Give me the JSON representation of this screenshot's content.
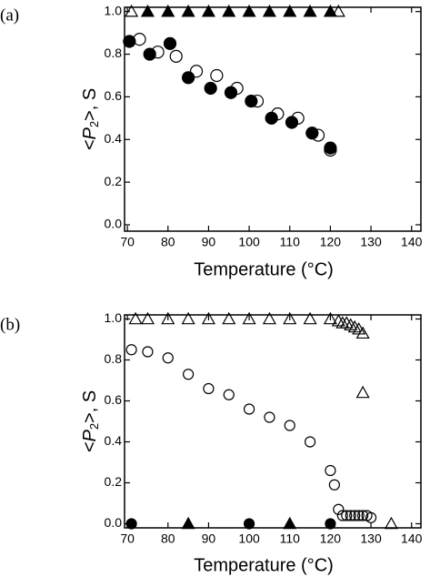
{
  "chart_data": [
    {
      "type": "scatter",
      "panel_label": "(a)",
      "x_label": "Temperature (°C)",
      "y_label_parts": [
        "<P",
        "2",
        ">, S"
      ],
      "xlim": [
        69.3,
        142.3
      ],
      "xticks": [
        70,
        80,
        90,
        100,
        110,
        120,
        130,
        140
      ],
      "ylim": [
        -0.03,
        1.02
      ],
      "yticks": [
        {
          "value": 0,
          "label": "0.0"
        },
        {
          "value": 0.2,
          "label": "0.2"
        },
        {
          "value": 0.4,
          "label": "0.4"
        },
        {
          "value": 0.6,
          "label": "0.6"
        },
        {
          "value": 0.8,
          "label": "0.8"
        },
        {
          "value": 1,
          "label": "1.0"
        }
      ],
      "series": [
        {
          "marker": "triangle",
          "filled": false,
          "color": "#000000",
          "x": [
            71,
            122
          ],
          "values": [
            1.0,
            1.0
          ]
        },
        {
          "marker": "triangle",
          "filled": true,
          "color": "#000000",
          "x": [
            75,
            80,
            85,
            90,
            95,
            100,
            105,
            110,
            115,
            120
          ],
          "values": [
            1.0,
            1.0,
            1.0,
            1.0,
            1.0,
            1.0,
            1.0,
            1.0,
            1.0,
            1.0
          ]
        },
        {
          "marker": "circle",
          "filled": false,
          "color": "#000000",
          "x": [
            73,
            77.5,
            82,
            87,
            92,
            97,
            102,
            107,
            112,
            117,
            120
          ],
          "values": [
            0.87,
            0.81,
            0.79,
            0.72,
            0.7,
            0.64,
            0.58,
            0.52,
            0.5,
            0.42,
            0.35
          ]
        },
        {
          "marker": "circle",
          "filled": true,
          "color": "#000000",
          "x": [
            70.5,
            75.5,
            80.5,
            85,
            90.5,
            95.5,
            100.5,
            105.5,
            110.5,
            115.5,
            120
          ],
          "values": [
            0.86,
            0.8,
            0.85,
            0.69,
            0.64,
            0.62,
            0.58,
            0.5,
            0.48,
            0.43,
            0.36
          ]
        }
      ]
    },
    {
      "type": "scatter",
      "panel_label": "(b)",
      "x_label": "Temperature (°C)",
      "y_label_parts": [
        "<P",
        "2",
        ">, S"
      ],
      "xlim": [
        69.3,
        142.3
      ],
      "xticks": [
        70,
        80,
        90,
        100,
        110,
        120,
        130,
        140
      ],
      "ylim": [
        -0.02,
        1.02
      ],
      "yticks": [
        {
          "value": 0,
          "label": "0.0"
        },
        {
          "value": 0.2,
          "label": "0.2"
        },
        {
          "value": 0.4,
          "label": "0.4"
        },
        {
          "value": 0.6,
          "label": "0.6"
        },
        {
          "value": 0.8,
          "label": "0.8"
        },
        {
          "value": 1,
          "label": "1.0"
        }
      ],
      "series": [
        {
          "marker": "triangle",
          "filled": false,
          "color": "#000000",
          "x": [
            72,
            75,
            80,
            85,
            90,
            95,
            100,
            105,
            110,
            115,
            120,
            122,
            123,
            124,
            125,
            126,
            127,
            128,
            128,
            135
          ],
          "values": [
            1.0,
            1.0,
            1.0,
            1.0,
            1.0,
            1.0,
            1.0,
            1.0,
            1.0,
            1.0,
            1.0,
            0.99,
            0.98,
            0.98,
            0.97,
            0.96,
            0.95,
            0.93,
            0.64,
            0.0
          ]
        },
        {
          "marker": "triangle",
          "filled": true,
          "color": "#000000",
          "x": [
            85,
            110
          ],
          "values": [
            0.0,
            0.0
          ]
        },
        {
          "marker": "circle",
          "filled": false,
          "color": "#000000",
          "x": [
            71,
            75,
            80,
            85,
            90,
            95,
            100,
            105,
            110,
            115,
            120,
            121,
            122,
            123,
            124,
            125,
            126,
            127,
            128,
            129,
            130
          ],
          "values": [
            0.85,
            0.84,
            0.81,
            0.73,
            0.66,
            0.63,
            0.56,
            0.52,
            0.48,
            0.4,
            0.26,
            0.19,
            0.07,
            0.04,
            0.04,
            0.04,
            0.04,
            0.04,
            0.04,
            0.04,
            0.03
          ]
        },
        {
          "marker": "circle",
          "filled": true,
          "color": "#000000",
          "x": [
            71,
            100,
            120
          ],
          "values": [
            0.0,
            0.0,
            0.0
          ]
        }
      ]
    }
  ]
}
